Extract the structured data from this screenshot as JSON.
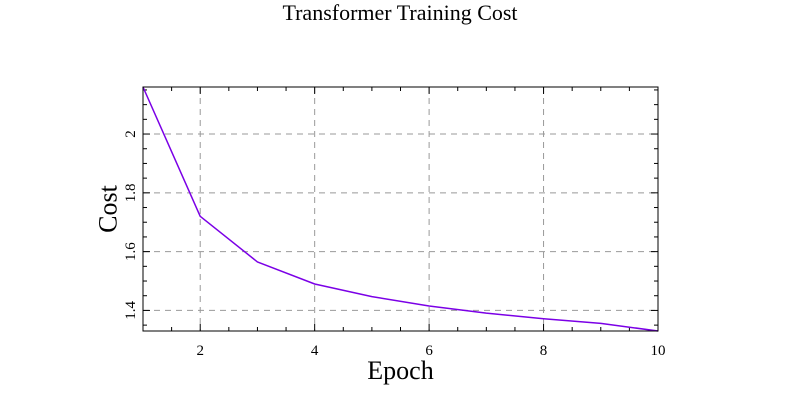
{
  "chart_data": {
    "type": "line",
    "title": "Transformer Training Cost",
    "xlabel": "Epoch",
    "ylabel": "Cost",
    "xlim": [
      1,
      10
    ],
    "ylim": [
      1.33,
      2.16
    ],
    "xticks": [
      2,
      4,
      6,
      8,
      10
    ],
    "yticks": [
      1.4,
      1.6,
      1.8,
      2
    ],
    "ytick_labels": [
      "1.4",
      "1.6",
      "1.8",
      "2"
    ],
    "grid": true,
    "series": [
      {
        "color": "#7b00e6",
        "x": [
          1,
          2,
          3,
          4,
          5,
          6,
          7,
          8,
          9,
          10
        ],
        "y": [
          2.16,
          1.72,
          1.565,
          1.49,
          1.447,
          1.415,
          1.391,
          1.372,
          1.356,
          1.33
        ]
      }
    ]
  }
}
